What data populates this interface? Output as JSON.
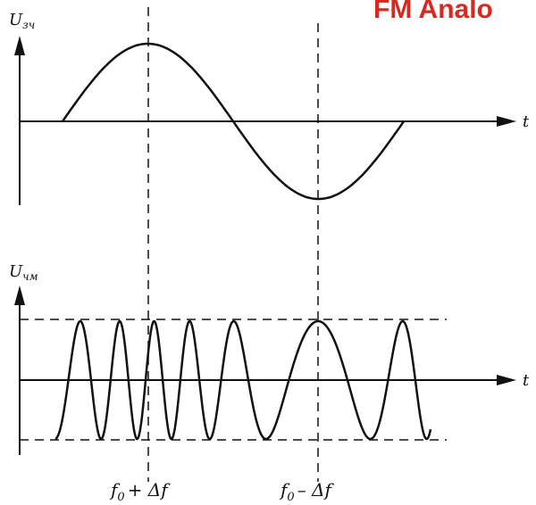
{
  "title": "FM Analo",
  "colors": {
    "title": "#d42a22",
    "ink": "#111111"
  },
  "top_plot": {
    "y_axis_label": "U",
    "y_axis_subscript": "зч",
    "x_axis_label": "t",
    "signal": "one sine period (audio modulating signal)",
    "max_marker": "positive peak",
    "min_marker": "negative peak"
  },
  "bottom_plot": {
    "y_axis_label": "U",
    "y_axis_subscript": "чм",
    "x_axis_label": "t",
    "signal": "frequency-modulated carrier",
    "envelope": "dashed amplitude limits"
  },
  "markers": {
    "left": {
      "f": "f",
      "sub": "0",
      "rest": "+ Δf"
    },
    "right": {
      "f": "f",
      "sub": "0",
      "rest": "– Δf"
    }
  }
}
